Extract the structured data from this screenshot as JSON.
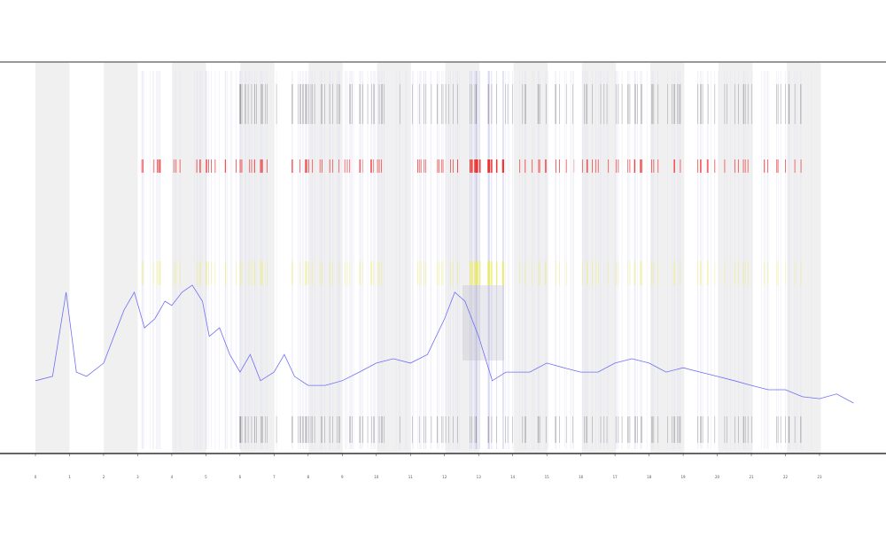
{
  "chart_data": {
    "type": "line",
    "x": [
      0,
      0.5,
      0.9,
      1.2,
      1.5,
      2,
      2.3,
      2.6,
      2.9,
      3.2,
      3.5,
      3.8,
      4.0,
      4.3,
      4.6,
      4.9,
      5.1,
      5.4,
      5.7,
      6,
      6.3,
      6.6,
      7,
      7.3,
      7.6,
      8,
      8.5,
      9,
      9.5,
      10,
      10.5,
      11,
      11.5,
      12,
      12.3,
      12.6,
      13,
      13.4,
      13.8,
      14.5,
      15,
      15.5,
      16,
      16.5,
      17,
      17.5,
      18,
      18.5,
      19,
      19.5,
      20,
      20.5,
      21,
      21.5,
      22,
      22.5,
      23,
      23.5,
      24
    ],
    "series": [
      {
        "color": "#6f6ff5",
        "values": [
          18.6,
          19.7,
          41.2,
          20.8,
          19.7,
          23.1,
          29.9,
          36.7,
          41.2,
          32.1,
          34.4,
          38.9,
          37.8,
          41.2,
          43.0,
          38.9,
          29.9,
          32.1,
          25.3,
          20.8,
          25.3,
          18.6,
          20.8,
          25.3,
          19.7,
          17.4,
          17.4,
          18.6,
          20.8,
          23.1,
          24.2,
          23.1,
          25.3,
          34.4,
          41.2,
          38.9,
          29.9,
          18.6,
          20.8,
          20.8,
          23.1,
          21.9,
          20.8,
          20.8,
          23.1,
          24.2,
          23.1,
          20.8,
          21.9,
          20.8,
          19.7,
          18.6,
          17.4,
          16.3,
          16.3,
          14.5,
          14.0,
          15.2,
          12.9
        ]
      }
    ],
    "xlim": [
      -1.04,
      24.95
    ],
    "ylim": [
      0,
      100
    ],
    "xticks": [
      0,
      1,
      2,
      3,
      4,
      5,
      6,
      7,
      8,
      9,
      10,
      11,
      12,
      13,
      14,
      15,
      16,
      17,
      18,
      19,
      20,
      21,
      22,
      23
    ]
  }
}
